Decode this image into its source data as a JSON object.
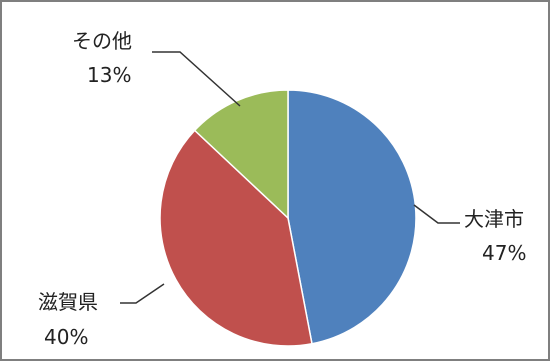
{
  "chart_data": {
    "type": "pie",
    "title": "",
    "start_angle_deg": 0,
    "direction": "clockwise",
    "slices": [
      {
        "label": "大津市",
        "value": 47,
        "display": "47%",
        "color": "#4f81bd"
      },
      {
        "label": "滋賀県",
        "value": 40,
        "display": "40%",
        "color": "#c0504d"
      },
      {
        "label": "その他",
        "value": 13,
        "display": "13%",
        "color": "#9bbb59"
      }
    ]
  }
}
